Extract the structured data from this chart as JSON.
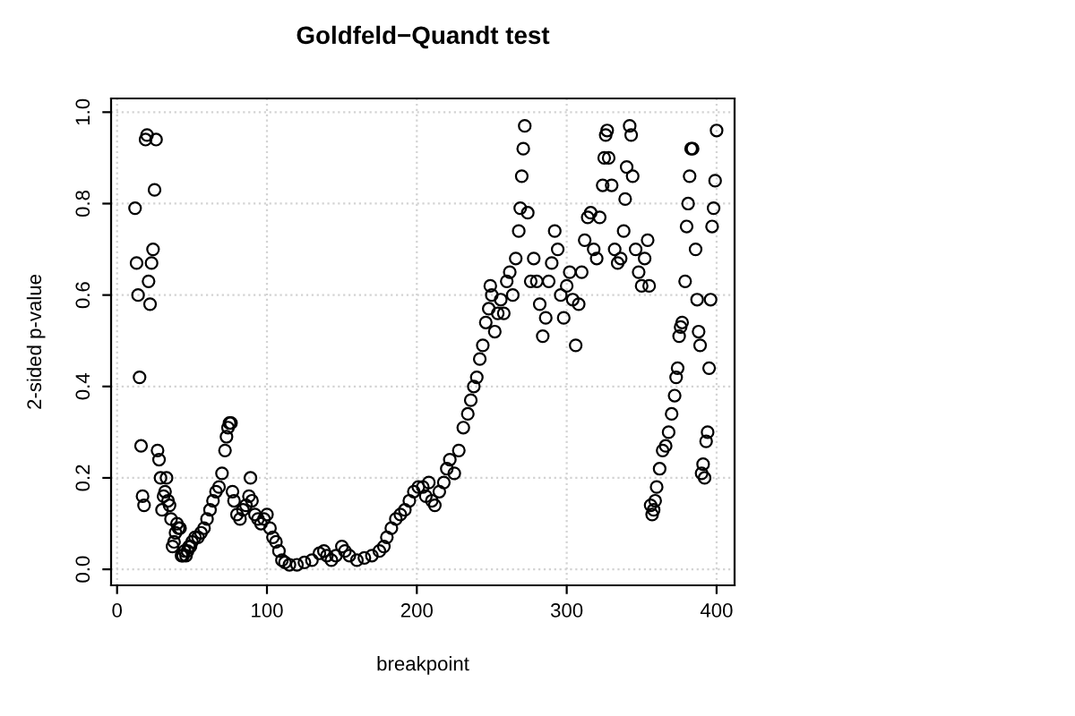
{
  "chart_data": {
    "type": "scatter",
    "title": "Goldfeld−Quandt test",
    "xlabel": "breakpoint",
    "ylabel": "2-sided p-value",
    "x": [
      12,
      13,
      14,
      15,
      16,
      17,
      18,
      19,
      20,
      21,
      22,
      23,
      24,
      25,
      26,
      27,
      28,
      29,
      30,
      31,
      32,
      33,
      34,
      35,
      36,
      37,
      38,
      39,
      40,
      41,
      42,
      43,
      44,
      45,
      46,
      47,
      48,
      49,
      50,
      52,
      54,
      56,
      58,
      60,
      62,
      64,
      66,
      68,
      70,
      72,
      73,
      74,
      75,
      76,
      77,
      78,
      80,
      82,
      84,
      86,
      88,
      89,
      90,
      92,
      94,
      96,
      98,
      100,
      102,
      104,
      106,
      108,
      110,
      112,
      115,
      120,
      125,
      130,
      135,
      138,
      140,
      143,
      146,
      150,
      152,
      155,
      160,
      165,
      170,
      175,
      178,
      180,
      183,
      186,
      189,
      192,
      195,
      198,
      201,
      204,
      206,
      208,
      210,
      212,
      215,
      218,
      220,
      222,
      225,
      228,
      231,
      234,
      236,
      238,
      240,
      242,
      244,
      246,
      248,
      249,
      250,
      252,
      254,
      256,
      258,
      260,
      262,
      264,
      266,
      268,
      269,
      270,
      271,
      272,
      274,
      276,
      278,
      280,
      282,
      284,
      286,
      288,
      290,
      292,
      294,
      296,
      298,
      300,
      302,
      304,
      306,
      308,
      310,
      312,
      314,
      316,
      318,
      320,
      322,
      324,
      325,
      326,
      327,
      328,
      330,
      332,
      334,
      336,
      338,
      339,
      340,
      342,
      343,
      344,
      346,
      348,
      350,
      352,
      354,
      355,
      356,
      357,
      358,
      359,
      360,
      362,
      364,
      366,
      368,
      370,
      372,
      373,
      374,
      375,
      376,
      377,
      379,
      380,
      381,
      382,
      383,
      384,
      386,
      387,
      388,
      389,
      390,
      391,
      392,
      393,
      394,
      395,
      396,
      397,
      398,
      399,
      400
    ],
    "values": [
      0.79,
      0.67,
      0.6,
      0.42,
      0.27,
      0.16,
      0.14,
      0.94,
      0.95,
      0.63,
      0.58,
      0.67,
      0.7,
      0.83,
      0.94,
      0.26,
      0.24,
      0.2,
      0.13,
      0.16,
      0.17,
      0.2,
      0.15,
      0.14,
      0.11,
      0.05,
      0.06,
      0.08,
      0.1,
      0.09,
      0.09,
      0.03,
      0.03,
      0.04,
      0.03,
      0.04,
      0.05,
      0.05,
      0.06,
      0.07,
      0.07,
      0.08,
      0.09,
      0.11,
      0.13,
      0.15,
      0.17,
      0.18,
      0.21,
      0.26,
      0.29,
      0.31,
      0.32,
      0.32,
      0.17,
      0.15,
      0.12,
      0.11,
      0.13,
      0.14,
      0.16,
      0.2,
      0.15,
      0.12,
      0.11,
      0.1,
      0.11,
      0.12,
      0.09,
      0.07,
      0.06,
      0.04,
      0.02,
      0.015,
      0.01,
      0.01,
      0.015,
      0.02,
      0.035,
      0.04,
      0.03,
      0.02,
      0.03,
      0.05,
      0.04,
      0.03,
      0.02,
      0.025,
      0.03,
      0.04,
      0.05,
      0.07,
      0.09,
      0.11,
      0.12,
      0.13,
      0.15,
      0.17,
      0.18,
      0.18,
      0.16,
      0.19,
      0.15,
      0.14,
      0.17,
      0.19,
      0.22,
      0.24,
      0.21,
      0.26,
      0.31,
      0.34,
      0.37,
      0.4,
      0.42,
      0.46,
      0.49,
      0.54,
      0.57,
      0.62,
      0.6,
      0.52,
      0.56,
      0.59,
      0.56,
      0.63,
      0.65,
      0.6,
      0.68,
      0.74,
      0.79,
      0.86,
      0.92,
      0.97,
      0.78,
      0.63,
      0.68,
      0.63,
      0.58,
      0.51,
      0.55,
      0.63,
      0.67,
      0.74,
      0.7,
      0.6,
      0.55,
      0.62,
      0.65,
      0.59,
      0.49,
      0.58,
      0.65,
      0.72,
      0.77,
      0.78,
      0.7,
      0.68,
      0.77,
      0.84,
      0.9,
      0.95,
      0.96,
      0.9,
      0.84,
      0.7,
      0.67,
      0.68,
      0.74,
      0.81,
      0.88,
      0.97,
      0.95,
      0.86,
      0.7,
      0.65,
      0.62,
      0.68,
      0.72,
      0.62,
      0.14,
      0.12,
      0.13,
      0.15,
      0.18,
      0.22,
      0.26,
      0.27,
      0.3,
      0.34,
      0.38,
      0.42,
      0.44,
      0.51,
      0.53,
      0.54,
      0.63,
      0.75,
      0.8,
      0.86,
      0.92,
      0.92,
      0.7,
      0.59,
      0.52,
      0.49,
      0.21,
      0.23,
      0.2,
      0.28,
      0.3,
      0.44,
      0.59,
      0.75,
      0.79,
      0.85,
      0.96
    ],
    "color": "#000000",
    "marker": "circle",
    "xlim": [
      -4,
      412
    ],
    "ylim": [
      -0.035,
      1.03
    ],
    "xticks": [
      0,
      100,
      200,
      300,
      400
    ],
    "yticks": [
      {
        "value": 0,
        "label": "0.0"
      },
      {
        "value": 0.2,
        "label": "0.2"
      },
      {
        "value": 0.4,
        "label": "0.4"
      },
      {
        "value": 0.6,
        "label": "0.6"
      },
      {
        "value": 0.8,
        "label": "0.8"
      },
      {
        "value": 1,
        "label": "1.0"
      }
    ],
    "grid": true
  }
}
